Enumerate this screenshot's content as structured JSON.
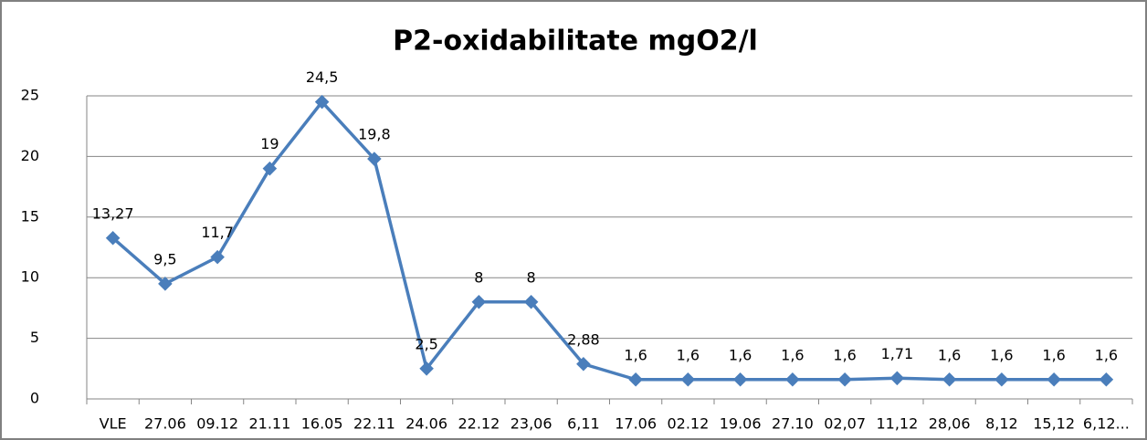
{
  "chart_data": {
    "type": "line",
    "title": "P2-oxidabilitate mgO2/l",
    "categories": [
      "VLE",
      "27.06",
      "09.12",
      "21.11",
      "16.05",
      "22.11",
      "24.06",
      "22.12",
      "23,06",
      "6,11",
      "17.06",
      "02.12",
      "19.06",
      "27.10",
      "02,07",
      "11,12",
      "28,06",
      "8,12",
      "15,12",
      "6,12..."
    ],
    "series": [
      {
        "name": "P2-oxidabilitate mgO2/l",
        "color": "#4a7ebb",
        "values": [
          13.27,
          9.5,
          11.7,
          19,
          24.5,
          19.8,
          2.5,
          8,
          8,
          2.88,
          1.6,
          1.6,
          1.6,
          1.6,
          1.6,
          1.71,
          1.6,
          1.6,
          1.6,
          1.6
        ],
        "value_labels": [
          "13,27",
          "9,5",
          "11,7",
          "19",
          "24,5",
          "19,8",
          "2,5",
          "8",
          "8",
          "2,88",
          "1,6",
          "1,6",
          "1,6",
          "1,6",
          "1,6",
          "1,71",
          "1,6",
          "1,6",
          "1,6",
          "1,6"
        ]
      }
    ],
    "ylim": [
      0,
      25
    ],
    "yticks": [
      0,
      5,
      10,
      15,
      20,
      25
    ],
    "grid": true
  }
}
